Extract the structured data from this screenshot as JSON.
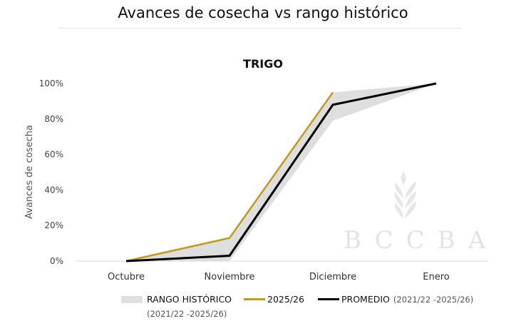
{
  "header": {
    "title": "Avances de cosecha vs rango histórico"
  },
  "chart_data": {
    "type": "line",
    "title": "TRIGO",
    "xlabel": "",
    "ylabel": "Avances de cosecha",
    "categories": [
      "Octubre",
      "Noviembre",
      "Diciembre",
      "Enero"
    ],
    "y_ticks": [
      "0%",
      "20%",
      "40%",
      "60%",
      "80%",
      "100%"
    ],
    "ylim": [
      0,
      100
    ],
    "grid": false,
    "series": [
      {
        "name": "2025/26",
        "color": "#c9971a",
        "values": [
          0,
          13,
          95,
          null
        ]
      },
      {
        "name": "PROMEDIO (2021/22 -2025/26)",
        "color": "#000000",
        "values": [
          0,
          3,
          88,
          100
        ]
      }
    ],
    "band": {
      "name": "RANGO HISTÓRICO (2021/22 -2025/26)",
      "color": "#dedede",
      "low": [
        0,
        0,
        79,
        100
      ],
      "high": [
        0,
        13,
        95,
        100
      ]
    },
    "legend_position": "bottom",
    "watermark": "BCCBA"
  },
  "legend": {
    "band_label": "RANGO HISTÓRICO",
    "band_sub": "(2021/22 -2025/26)",
    "series_label": "2025/26",
    "avg_label": "PROMEDIO",
    "avg_sub": "(2021/22 -2025/26)"
  }
}
